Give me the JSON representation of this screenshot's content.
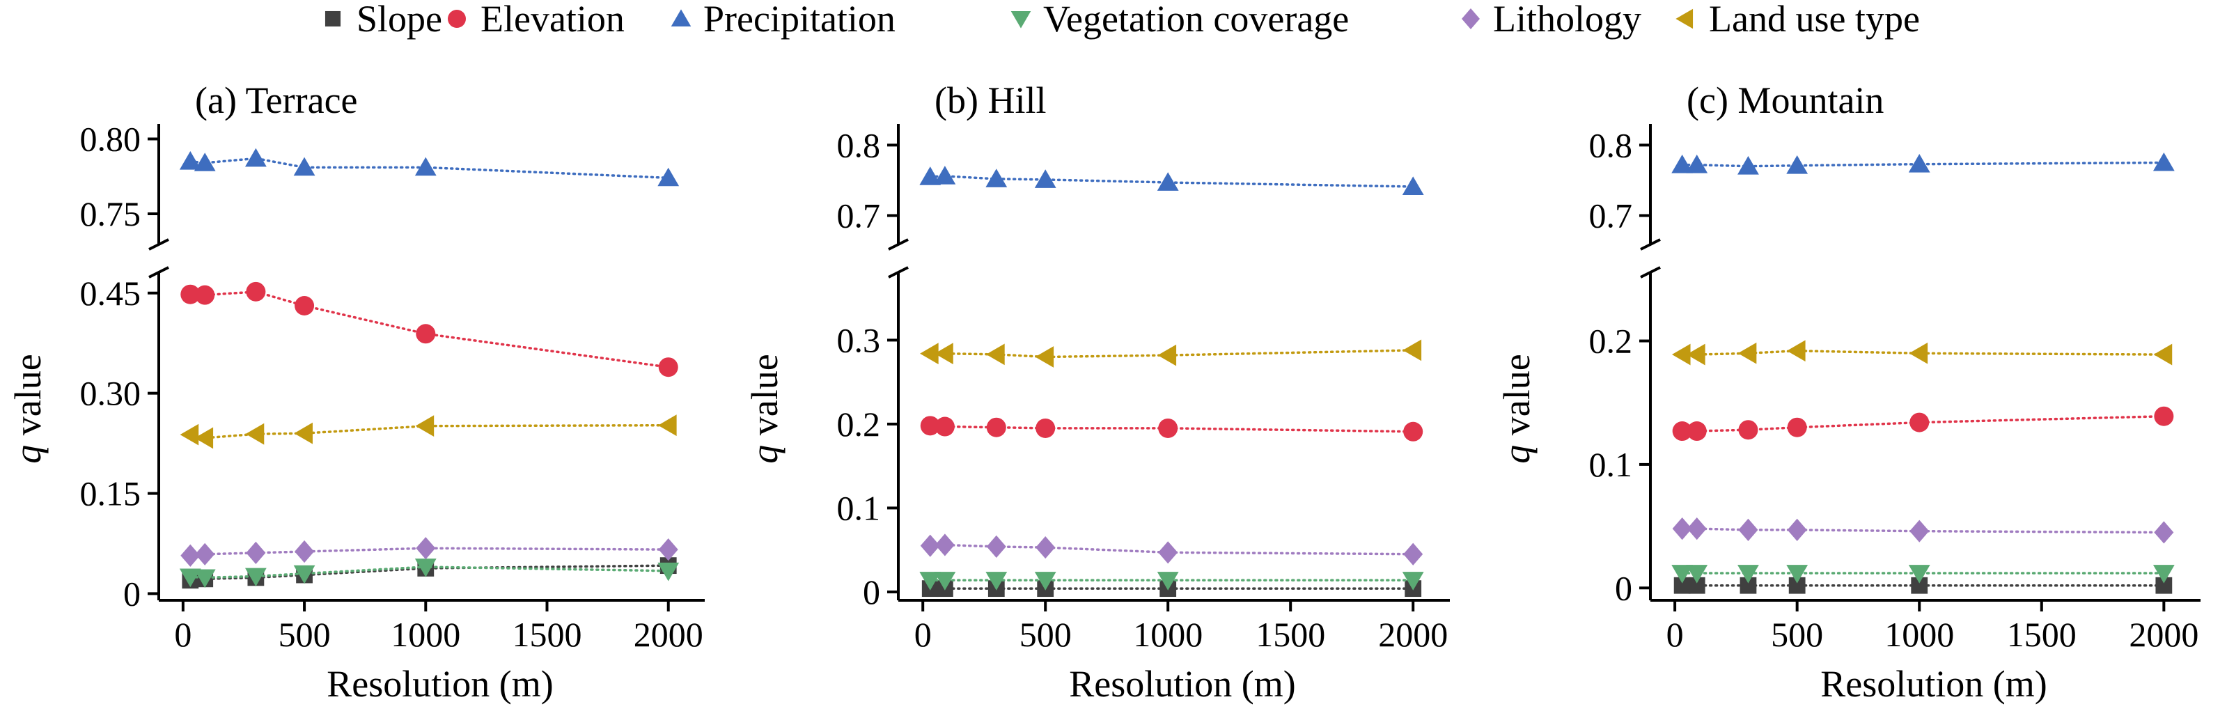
{
  "legend": [
    {
      "name": "Slope",
      "color": "#404040",
      "marker": "square"
    },
    {
      "name": "Elevation",
      "color": "#e0344a",
      "marker": "circle"
    },
    {
      "name": "Precipitation",
      "color": "#3e6dbf",
      "marker": "triangle-up"
    },
    {
      "name": "Vegetation coverage",
      "color": "#5aaa73",
      "marker": "triangle-down"
    },
    {
      "name": "Lithology",
      "color": "#a07cc0",
      "marker": "diamond"
    },
    {
      "name": "Land use type",
      "color": "#c29a10",
      "marker": "triangle-left"
    }
  ],
  "chart_data": [
    {
      "type": "scatter",
      "title": "(a) Terrace",
      "xlabel": "Resolution (m)",
      "ylabel_italic": "q",
      "ylabel": " value",
      "x": [
        30,
        90,
        300,
        500,
        1000,
        2000
      ],
      "xlim": [
        -100,
        2150
      ],
      "xticks": [
        0,
        500,
        1000,
        1500,
        2000
      ],
      "upper": {
        "ylim": [
          0.73,
          0.81
        ],
        "yticks": [
          0.75,
          0.8
        ],
        "tick_labels": [
          "0.75",
          "0.80"
        ]
      },
      "lower": {
        "ylim": [
          -0.01,
          0.48
        ],
        "yticks": [
          0,
          0.15,
          0.3,
          0.45
        ],
        "tick_labels": [
          "0",
          "0.15",
          "0.30",
          "0.45"
        ]
      },
      "series": [
        {
          "name": "Slope",
          "values": [
            0.02,
            0.022,
            0.024,
            0.028,
            0.038,
            0.042
          ]
        },
        {
          "name": "Elevation",
          "values": [
            0.448,
            0.447,
            0.452,
            0.431,
            0.389,
            0.339
          ]
        },
        {
          "name": "Precipitation",
          "values": [
            0.785,
            0.784,
            0.787,
            0.781,
            0.781,
            0.774
          ]
        },
        {
          "name": "Vegetation coverage",
          "values": [
            0.025,
            0.024,
            0.026,
            0.03,
            0.04,
            0.034
          ]
        },
        {
          "name": "Lithology",
          "values": [
            0.057,
            0.059,
            0.061,
            0.063,
            0.068,
            0.066
          ]
        },
        {
          "name": "Land use type",
          "values": [
            0.238,
            0.233,
            0.239,
            0.24,
            0.251,
            0.252
          ]
        }
      ]
    },
    {
      "type": "scatter",
      "title": "(b) Hill",
      "xlabel": "Resolution (m)",
      "ylabel_italic": "q",
      "ylabel": " value",
      "x": [
        30,
        90,
        300,
        500,
        1000,
        2000
      ],
      "xlim": [
        -100,
        2150
      ],
      "xticks": [
        0,
        500,
        1000,
        1500,
        2000
      ],
      "upper": {
        "ylim": [
          0.66,
          0.83
        ],
        "yticks": [
          0.7,
          0.8
        ],
        "tick_labels": [
          "0.7",
          "0.8"
        ]
      },
      "lower": {
        "ylim": [
          -0.01,
          0.38
        ],
        "yticks": [
          0,
          0.1,
          0.2,
          0.3
        ],
        "tick_labels": [
          "0",
          "0.1",
          "0.2",
          "0.3"
        ]
      },
      "series": [
        {
          "name": "Slope",
          "values": [
            0.004,
            0.004,
            0.004,
            0.004,
            0.004,
            0.004
          ]
        },
        {
          "name": "Elevation",
          "values": [
            0.198,
            0.197,
            0.196,
            0.195,
            0.195,
            0.191
          ]
        },
        {
          "name": "Precipitation",
          "values": [
            0.755,
            0.756,
            0.752,
            0.751,
            0.747,
            0.741
          ]
        },
        {
          "name": "Vegetation coverage",
          "values": [
            0.014,
            0.014,
            0.014,
            0.014,
            0.014,
            0.014
          ]
        },
        {
          "name": "Lithology",
          "values": [
            0.055,
            0.056,
            0.054,
            0.053,
            0.047,
            0.045
          ]
        },
        {
          "name": "Land use type",
          "values": [
            0.284,
            0.284,
            0.283,
            0.28,
            0.282,
            0.288
          ]
        }
      ]
    },
    {
      "type": "scatter",
      "title": "(c) Mountain",
      "xlabel": "Resolution (m)",
      "ylabel_italic": "q",
      "ylabel": " value",
      "x": [
        30,
        90,
        300,
        500,
        1000,
        2000
      ],
      "xlim": [
        -100,
        2150
      ],
      "xticks": [
        0,
        500,
        1000,
        1500,
        2000
      ],
      "upper": {
        "ylim": [
          0.66,
          0.83
        ],
        "yticks": [
          0.7,
          0.8
        ],
        "tick_labels": [
          "0.7",
          "0.8"
        ]
      },
      "lower": {
        "ylim": [
          -0.01,
          0.255
        ],
        "yticks": [
          0,
          0.1,
          0.2
        ],
        "tick_labels": [
          "0",
          "0.1",
          "0.2"
        ]
      },
      "series": [
        {
          "name": "Slope",
          "values": [
            0.002,
            0.002,
            0.002,
            0.002,
            0.002,
            0.002
          ]
        },
        {
          "name": "Elevation",
          "values": [
            0.127,
            0.127,
            0.128,
            0.13,
            0.134,
            0.139
          ]
        },
        {
          "name": "Precipitation",
          "values": [
            0.772,
            0.772,
            0.77,
            0.771,
            0.773,
            0.775
          ]
        },
        {
          "name": "Vegetation coverage",
          "values": [
            0.012,
            0.012,
            0.012,
            0.012,
            0.012,
            0.012
          ]
        },
        {
          "name": "Lithology",
          "values": [
            0.048,
            0.048,
            0.047,
            0.047,
            0.046,
            0.045
          ]
        },
        {
          "name": "Land use type",
          "values": [
            0.189,
            0.189,
            0.19,
            0.192,
            0.19,
            0.189
          ]
        }
      ]
    }
  ]
}
